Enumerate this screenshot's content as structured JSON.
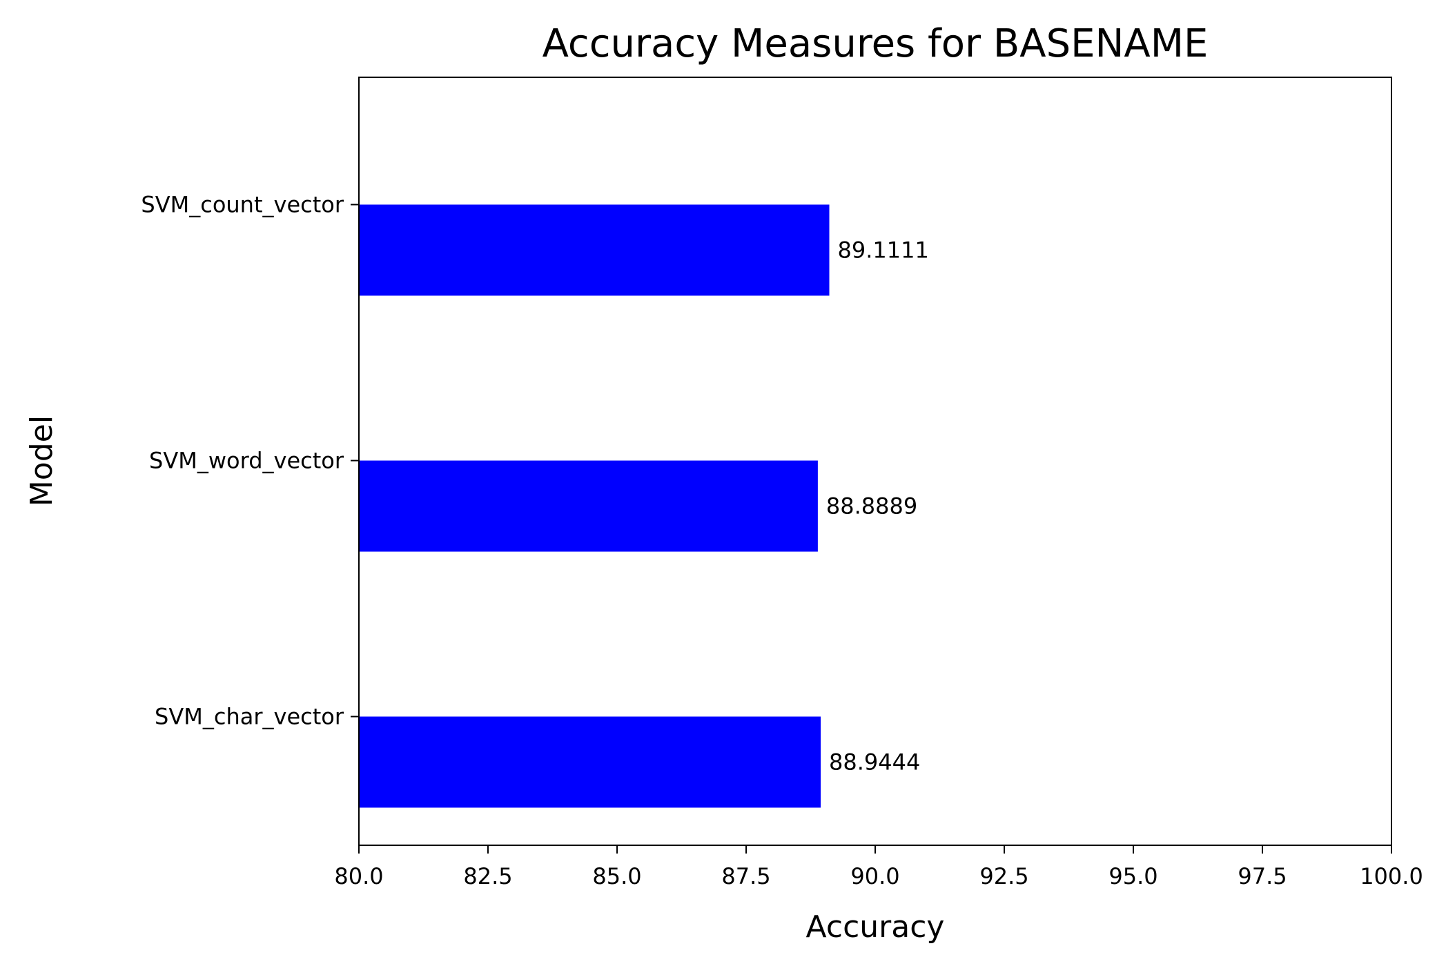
{
  "chart_data": {
    "type": "bar",
    "orientation": "horizontal",
    "title": "Accuracy Measures for BASENAME",
    "xlabel": "Accuracy",
    "ylabel": "Model",
    "xlim": [
      80.0,
      100.0
    ],
    "xticks": [
      "80.0",
      "82.5",
      "85.0",
      "87.5",
      "90.0",
      "92.5",
      "95.0",
      "97.5",
      "100.0"
    ],
    "categories": [
      "SVM_count_vector",
      "SVM_word_vector",
      "SVM_char_vector"
    ],
    "values": [
      89.1111,
      88.8889,
      88.9444
    ],
    "value_labels": [
      "89.1111",
      "88.8889",
      "88.9444"
    ],
    "bar_color": "#0000ff",
    "grid": false
  }
}
